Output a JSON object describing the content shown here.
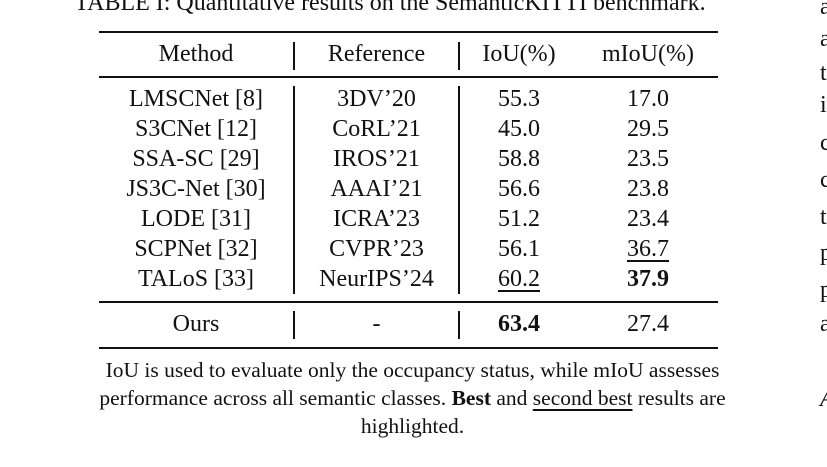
{
  "caption_top": "TABLE I: Quantitative results on the SemanticKITTI benchmark.",
  "headers": {
    "method": "Method",
    "reference": "Reference",
    "iou": "IoU(%)",
    "miou": "mIoU(%)"
  },
  "rows": [
    {
      "method": "LMSCNet [8]",
      "reference": "3DV’20",
      "iou": "55.3",
      "miou": "17.0"
    },
    {
      "method": "S3CNet [12]",
      "reference": "CoRL’21",
      "iou": "45.0",
      "miou": "29.5"
    },
    {
      "method": "SSA-SC [29]",
      "reference": "IROS’21",
      "iou": "58.8",
      "miou": "23.5"
    },
    {
      "method": "JS3C-Net [30]",
      "reference": "AAAI’21",
      "iou": "56.6",
      "miou": "23.8"
    },
    {
      "method": "LODE [31]",
      "reference": "ICRA’23",
      "iou": "51.2",
      "miou": "23.4"
    },
    {
      "method": "SCPNet [32]",
      "reference": "CVPR’23",
      "iou": "56.1",
      "miou": "36.7"
    },
    {
      "method": "TALoS [33]",
      "reference": "NeurIPS’24",
      "iou": "60.2",
      "miou": "37.9"
    }
  ],
  "ours": {
    "method": "Ours",
    "reference": "-",
    "iou": "63.4",
    "miou": "27.4"
  },
  "note": {
    "line1": "IoU is used to evaluate only the occupancy status, while mIoU assesses",
    "line2_a": "performance across all semantic classes.",
    "line2_best": "Best",
    "line2_b": "and",
    "line2_second": "second best",
    "line2_c": "results are",
    "line3": "highlighted."
  },
  "right_column_chars": [
    "a",
    "a",
    "t",
    "i",
    "c",
    "c",
    "t",
    "p",
    "p",
    "a",
    "A"
  ]
}
